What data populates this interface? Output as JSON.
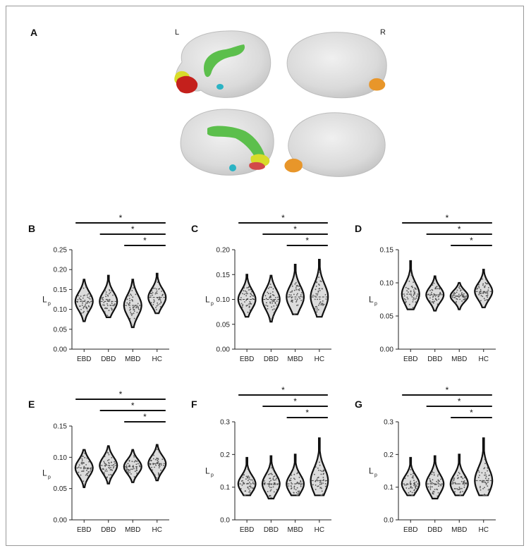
{
  "panel_a": {
    "label": "A",
    "left_hemisphere": "L",
    "right_hemisphere": "R",
    "colors": {
      "cortex": "#dcdcdc",
      "cingulum": "#5cbf4c",
      "frontal_yellow": "#d8dc2a",
      "orbital_red": "#c4201c",
      "temporal_cyan": "#2bb3c4",
      "occipital_orange": "#e8962a"
    }
  },
  "chart_data": [
    {
      "panel": "B",
      "type": "violin",
      "categories": [
        "EBD",
        "DBD",
        "MBD",
        "HC"
      ],
      "ylabel": "L",
      "ylabel_subscript": "p",
      "ylim": [
        0,
        0.25
      ],
      "yticks": [
        "0.00",
        "0.05",
        "0.10",
        "0.15",
        "0.20",
        "0.25"
      ],
      "ytick_values": [
        0,
        0.05,
        0.1,
        0.15,
        0.2,
        0.25
      ],
      "min": [
        0.07,
        0.08,
        0.055,
        0.09
      ],
      "max": [
        0.175,
        0.185,
        0.175,
        0.19
      ],
      "median": [
        0.12,
        0.12,
        0.11,
        0.13
      ],
      "significance": [
        {
          "from": "EBD",
          "to": "HC",
          "label": "*"
        },
        {
          "from": "DBD",
          "to": "HC",
          "label": "*"
        },
        {
          "from": "MBD",
          "to": "HC",
          "label": "*"
        }
      ]
    },
    {
      "panel": "C",
      "type": "violin",
      "categories": [
        "EBD",
        "DBD",
        "MBD",
        "HC"
      ],
      "ylabel": "L",
      "ylabel_subscript": "p",
      "ylim": [
        0,
        0.2
      ],
      "yticks": [
        "0.00",
        "0.05",
        "0.10",
        "0.15",
        "0.20"
      ],
      "ytick_values": [
        0,
        0.05,
        0.1,
        0.15,
        0.2
      ],
      "min": [
        0.065,
        0.055,
        0.07,
        0.065
      ],
      "max": [
        0.15,
        0.148,
        0.17,
        0.18
      ],
      "median": [
        0.1,
        0.1,
        0.105,
        0.105
      ],
      "significance": [
        {
          "from": "EBD",
          "to": "HC",
          "label": "*"
        },
        {
          "from": "DBD",
          "to": "HC",
          "label": "*"
        },
        {
          "from": "MBD",
          "to": "HC",
          "label": "*"
        }
      ]
    },
    {
      "panel": "D",
      "type": "violin",
      "categories": [
        "EBD",
        "DBD",
        "MBD",
        "HC"
      ],
      "ylabel": "L",
      "ylabel_subscript": "p",
      "ylim": [
        0,
        0.15
      ],
      "yticks": [
        "0.00",
        "0.05",
        "0.10",
        "0.15"
      ],
      "ytick_values": [
        0,
        0.05,
        0.1,
        0.15
      ],
      "min": [
        0.06,
        0.058,
        0.06,
        0.063
      ],
      "max": [
        0.133,
        0.11,
        0.1,
        0.12
      ],
      "median": [
        0.083,
        0.082,
        0.08,
        0.087
      ],
      "significance": [
        {
          "from": "EBD",
          "to": "HC",
          "label": "*"
        },
        {
          "from": "DBD",
          "to": "HC",
          "label": "*"
        },
        {
          "from": "MBD",
          "to": "HC",
          "label": "*"
        }
      ]
    },
    {
      "panel": "E",
      "type": "violin",
      "categories": [
        "EBD",
        "DBD",
        "MBD",
        "HC"
      ],
      "ylabel": "L",
      "ylabel_subscript": "p",
      "ylim": [
        0,
        0.15
      ],
      "yticks": [
        "0.00",
        "0.05",
        "0.10",
        "0.15"
      ],
      "ytick_values": [
        0,
        0.05,
        0.1,
        0.15
      ],
      "min": [
        0.052,
        0.058,
        0.06,
        0.063
      ],
      "max": [
        0.112,
        0.118,
        0.112,
        0.12
      ],
      "median": [
        0.083,
        0.087,
        0.085,
        0.09
      ],
      "significance": [
        {
          "from": "EBD",
          "to": "HC",
          "label": "*"
        },
        {
          "from": "DBD",
          "to": "HC",
          "label": "*"
        },
        {
          "from": "MBD",
          "to": "HC",
          "label": "*"
        }
      ]
    },
    {
      "panel": "F",
      "type": "violin",
      "categories": [
        "EBD",
        "DBD",
        "MBD",
        "HC"
      ],
      "ylabel": "L",
      "ylabel_subscript": "p",
      "ylim": [
        0,
        0.3
      ],
      "yticks": [
        "0.0",
        "0.1",
        "0.2",
        "0.3"
      ],
      "ytick_values": [
        0,
        0.1,
        0.2,
        0.3
      ],
      "min": [
        0.075,
        0.065,
        0.075,
        0.075
      ],
      "max": [
        0.19,
        0.195,
        0.2,
        0.25
      ],
      "median": [
        0.11,
        0.11,
        0.11,
        0.12
      ],
      "significance": [
        {
          "from": "EBD",
          "to": "HC",
          "label": "*"
        },
        {
          "from": "DBD",
          "to": "HC",
          "label": "*"
        },
        {
          "from": "MBD",
          "to": "HC",
          "label": "*"
        }
      ]
    },
    {
      "panel": "G",
      "type": "violin",
      "categories": [
        "EBD",
        "DBD",
        "MBD",
        "HC"
      ],
      "ylabel": "L",
      "ylabel_subscript": "p",
      "ylim": [
        0,
        0.3
      ],
      "yticks": [
        "0.0",
        "0.1",
        "0.2",
        "0.3"
      ],
      "ytick_values": [
        0,
        0.1,
        0.2,
        0.3
      ],
      "min": [
        0.075,
        0.065,
        0.075,
        0.075
      ],
      "max": [
        0.19,
        0.195,
        0.2,
        0.25
      ],
      "median": [
        0.11,
        0.11,
        0.11,
        0.12
      ],
      "significance": [
        {
          "from": "EBD",
          "to": "HC",
          "label": "*"
        },
        {
          "from": "DBD",
          "to": "HC",
          "label": "*"
        },
        {
          "from": "MBD",
          "to": "HC",
          "label": "*"
        }
      ]
    }
  ]
}
